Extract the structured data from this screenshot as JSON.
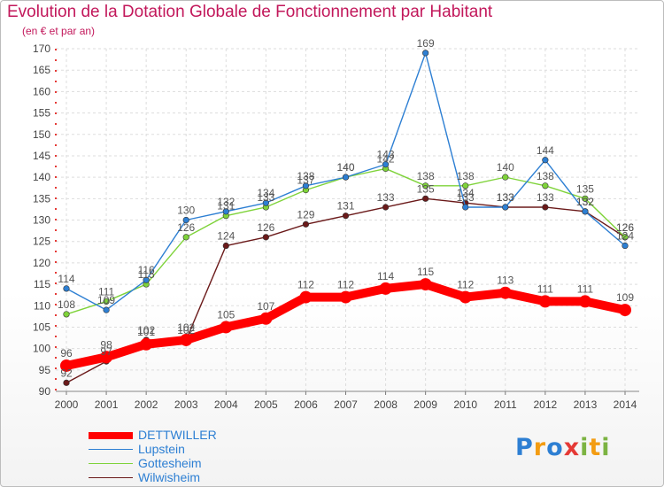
{
  "chart_data": {
    "type": "line",
    "title": "Evolution de la Dotation Globale de Fonctionnement par Habitant",
    "subtitle": "(en € et par an)",
    "x": [
      "2000",
      "2001",
      "2002",
      "2003",
      "2004",
      "2005",
      "2006",
      "2007",
      "2008",
      "2009",
      "2010",
      "2011",
      "2012",
      "2013",
      "2014"
    ],
    "ylim": [
      90,
      170
    ],
    "yticks": [
      90,
      95,
      100,
      105,
      110,
      115,
      120,
      125,
      130,
      135,
      140,
      145,
      150,
      155,
      160,
      165,
      170
    ],
    "grid": true,
    "series": [
      {
        "name": "DETTWILLER",
        "color": "#ff0000",
        "values": [
          96,
          98,
          101,
          102,
          105,
          107,
          112,
          112,
          114,
          115,
          112,
          113,
          111,
          111,
          109
        ]
      },
      {
        "name": "Lupstein",
        "color": "#2d7fd3",
        "values": [
          114,
          109,
          116,
          130,
          132,
          134,
          138,
          140,
          143,
          169,
          133,
          133,
          144,
          132,
          124
        ]
      },
      {
        "name": "Gottesheim",
        "color": "#7fd33a",
        "values": [
          108,
          111,
          115,
          126,
          131,
          133,
          137,
          140,
          142,
          138,
          138,
          140,
          138,
          135,
          126
        ]
      },
      {
        "name": "Wilwisheim",
        "color": "#6b1a1a",
        "values": [
          92,
          97,
          102,
          102,
          124,
          126,
          129,
          131,
          133,
          135,
          134,
          133,
          133,
          132,
          126
        ]
      }
    ]
  },
  "legend": {
    "items": [
      {
        "label": "DETTWILLER",
        "color": "#ff0000"
      },
      {
        "label": "Lupstein",
        "color": "#2d7fd3"
      },
      {
        "label": "Gottesheim",
        "color": "#7fd33a"
      },
      {
        "label": "Wilwisheim",
        "color": "#6b1a1a"
      }
    ]
  },
  "logo": {
    "text": "Proxiti",
    "letters": [
      "P",
      "r",
      "o",
      "x",
      "i",
      "t",
      "i"
    ],
    "colors": [
      "#2d7fd3",
      "#f39c12",
      "#2d7fd3",
      "#e53935",
      "#7cb342",
      "#f39c12",
      "#7cb342"
    ]
  }
}
